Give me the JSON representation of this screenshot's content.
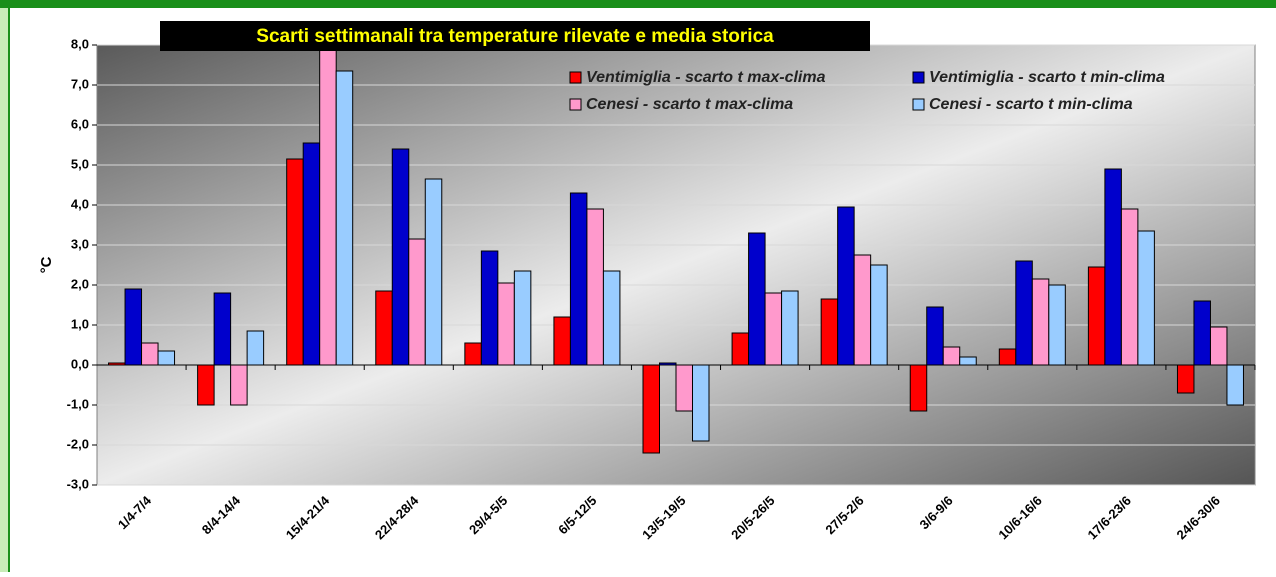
{
  "chart_data": {
    "type": "bar",
    "title": "Scarti settimanali tra temperature rilevate e media storica",
    "y_label": "°C",
    "categories": [
      "1/4-7/4",
      "8/4-14/4",
      "15/4-21/4",
      "22/4-28/4",
      "29/4-5/5",
      "6/5-12/5",
      "13/5-19/5",
      "20/5-26/5",
      "27/5-2/6",
      "3/6-9/6",
      "10/6-16/6",
      "17/6-23/6",
      "24/6-30/6"
    ],
    "series": [
      {
        "name": "Ventimiglia - scarto t max-clima",
        "color": "#ff0000",
        "values": [
          0.05,
          -1.0,
          5.15,
          1.85,
          0.55,
          1.2,
          -2.2,
          0.8,
          1.65,
          -1.15,
          0.4,
          2.45,
          -0.7
        ]
      },
      {
        "name": "Ventimiglia - scarto t min-clima",
        "color": "#0000cc",
        "values": [
          1.9,
          1.8,
          5.55,
          5.4,
          2.85,
          4.3,
          0.05,
          3.3,
          3.95,
          1.45,
          2.6,
          4.9,
          1.6
        ]
      },
      {
        "name": "Cenesi - scarto t max-clima",
        "color": "#ff99cc",
        "values": [
          0.55,
          -1.0,
          8.0,
          3.15,
          2.05,
          3.9,
          -1.15,
          1.8,
          2.75,
          0.45,
          2.15,
          3.9,
          0.95
        ]
      },
      {
        "name": "Cenesi - scarto t min-clima",
        "color": "#99ccff",
        "values": [
          0.35,
          0.85,
          7.35,
          4.65,
          2.35,
          2.35,
          -1.9,
          1.85,
          2.5,
          0.2,
          2.0,
          3.35,
          -1.0
        ]
      }
    ],
    "ylim": [
      -3,
      8
    ],
    "yticks": [
      {
        "value": -3,
        "label": "-3,0"
      },
      {
        "value": -2,
        "label": "-2,0"
      },
      {
        "value": -1,
        "label": "-1,0"
      },
      {
        "value": 0,
        "label": "0,0"
      },
      {
        "value": 1,
        "label": "1,0"
      },
      {
        "value": 2,
        "label": "2,0"
      },
      {
        "value": 3,
        "label": "3,0"
      },
      {
        "value": 4,
        "label": "4,0"
      },
      {
        "value": 5,
        "label": "5,0"
      },
      {
        "value": 6,
        "label": "6,0"
      },
      {
        "value": 7,
        "label": "7,0"
      },
      {
        "value": 8,
        "label": "8,0"
      }
    ],
    "grid": true,
    "legend": "upper right"
  }
}
